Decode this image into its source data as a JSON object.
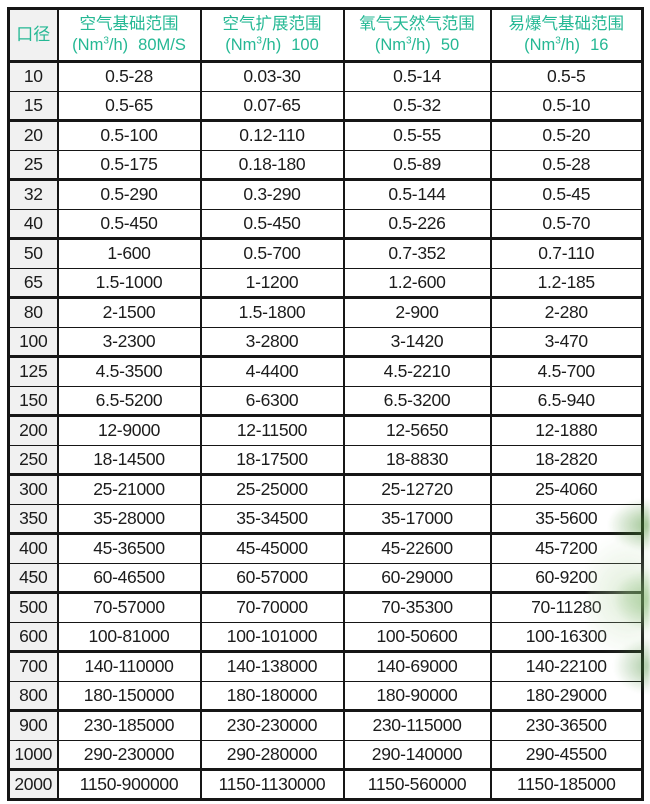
{
  "colors": {
    "header_text": "#25b894",
    "body_text": "#1c1c1c",
    "border": "#161616",
    "first_col_bg": "#f1f1f1",
    "leaf_green": "#5aa046",
    "background": "#ffffff"
  },
  "chart_data": {
    "type": "table",
    "columns": [
      {
        "title": "口径",
        "unit_prefix": "",
        "sup": "",
        "unit_suffix": "",
        "extra": ""
      },
      {
        "title": "空气基础范围",
        "unit_prefix": "(Nm",
        "sup": "3",
        "unit_suffix": "/h)",
        "extra": "80M/S"
      },
      {
        "title": "空气扩展范围",
        "unit_prefix": "(Nm",
        "sup": "3",
        "unit_suffix": "/h)",
        "extra": "100"
      },
      {
        "title": "氧气天然气范围",
        "unit_prefix": "(Nm",
        "sup": "3",
        "unit_suffix": "/h)",
        "extra": "50"
      },
      {
        "title": "易爆气基础范围",
        "unit_prefix": "(Nm",
        "sup": "3",
        "unit_suffix": "/h)",
        "extra": "16"
      }
    ],
    "rows": [
      {
        "size": "10",
        "values": [
          "0.5-28",
          "0.03-30",
          "0.5-14",
          "0.5-5"
        ]
      },
      {
        "size": "15",
        "values": [
          "0.5-65",
          "0.07-65",
          "0.5-32",
          "0.5-10"
        ]
      },
      {
        "size": "20",
        "values": [
          "0.5-100",
          "0.12-110",
          "0.5-55",
          "0.5-20"
        ]
      },
      {
        "size": "25",
        "values": [
          "0.5-175",
          "0.18-180",
          "0.5-89",
          "0.5-28"
        ]
      },
      {
        "size": "32",
        "values": [
          "0.5-290",
          "0.3-290",
          "0.5-144",
          "0.5-45"
        ]
      },
      {
        "size": "40",
        "values": [
          "0.5-450",
          "0.5-450",
          "0.5-226",
          "0.5-70"
        ]
      },
      {
        "size": "50",
        "values": [
          "1-600",
          "0.5-700",
          "0.7-352",
          "0.7-110"
        ]
      },
      {
        "size": "65",
        "values": [
          "1.5-1000",
          "1-1200",
          "1.2-600",
          "1.2-185"
        ]
      },
      {
        "size": "80",
        "values": [
          "2-1500",
          "1.5-1800",
          "2-900",
          "2-280"
        ]
      },
      {
        "size": "100",
        "values": [
          "3-2300",
          "3-2800",
          "3-1420",
          "3-470"
        ]
      },
      {
        "size": "125",
        "values": [
          "4.5-3500",
          "4-4400",
          "4.5-2210",
          "4.5-700"
        ]
      },
      {
        "size": "150",
        "values": [
          "6.5-5200",
          "6-6300",
          "6.5-3200",
          "6.5-940"
        ]
      },
      {
        "size": "200",
        "values": [
          "12-9000",
          "12-11500",
          "12-5650",
          "12-1880"
        ]
      },
      {
        "size": "250",
        "values": [
          "18-14500",
          "18-17500",
          "18-8830",
          "18-2820"
        ]
      },
      {
        "size": "300",
        "values": [
          "25-21000",
          "25-25000",
          "25-12720",
          "25-4060"
        ]
      },
      {
        "size": "350",
        "values": [
          "35-28000",
          "35-34500",
          "35-17000",
          "35-5600"
        ]
      },
      {
        "size": "400",
        "values": [
          "45-36500",
          "45-45000",
          "45-22600",
          "45-7200"
        ]
      },
      {
        "size": "450",
        "values": [
          "60-46500",
          "60-57000",
          "60-29000",
          "60-9200"
        ]
      },
      {
        "size": "500",
        "values": [
          "70-57000",
          "70-70000",
          "70-35300",
          "70-11280"
        ]
      },
      {
        "size": "600",
        "values": [
          "100-81000",
          "100-101000",
          "100-50600",
          "100-16300"
        ]
      },
      {
        "size": "700",
        "values": [
          "140-110000",
          "140-138000",
          "140-69000",
          "140-22100"
        ]
      },
      {
        "size": "800",
        "values": [
          "180-150000",
          "180-180000",
          "180-90000",
          "180-29000"
        ]
      },
      {
        "size": "900",
        "values": [
          "230-185000",
          "230-230000",
          "230-115000",
          "230-36500"
        ]
      },
      {
        "size": "1000",
        "values": [
          "290-230000",
          "290-280000",
          "290-140000",
          "290-45500"
        ]
      },
      {
        "size": "2000",
        "values": [
          "1150-900000",
          "1150-1130000",
          "1150-560000",
          "1150-185000"
        ]
      }
    ]
  }
}
